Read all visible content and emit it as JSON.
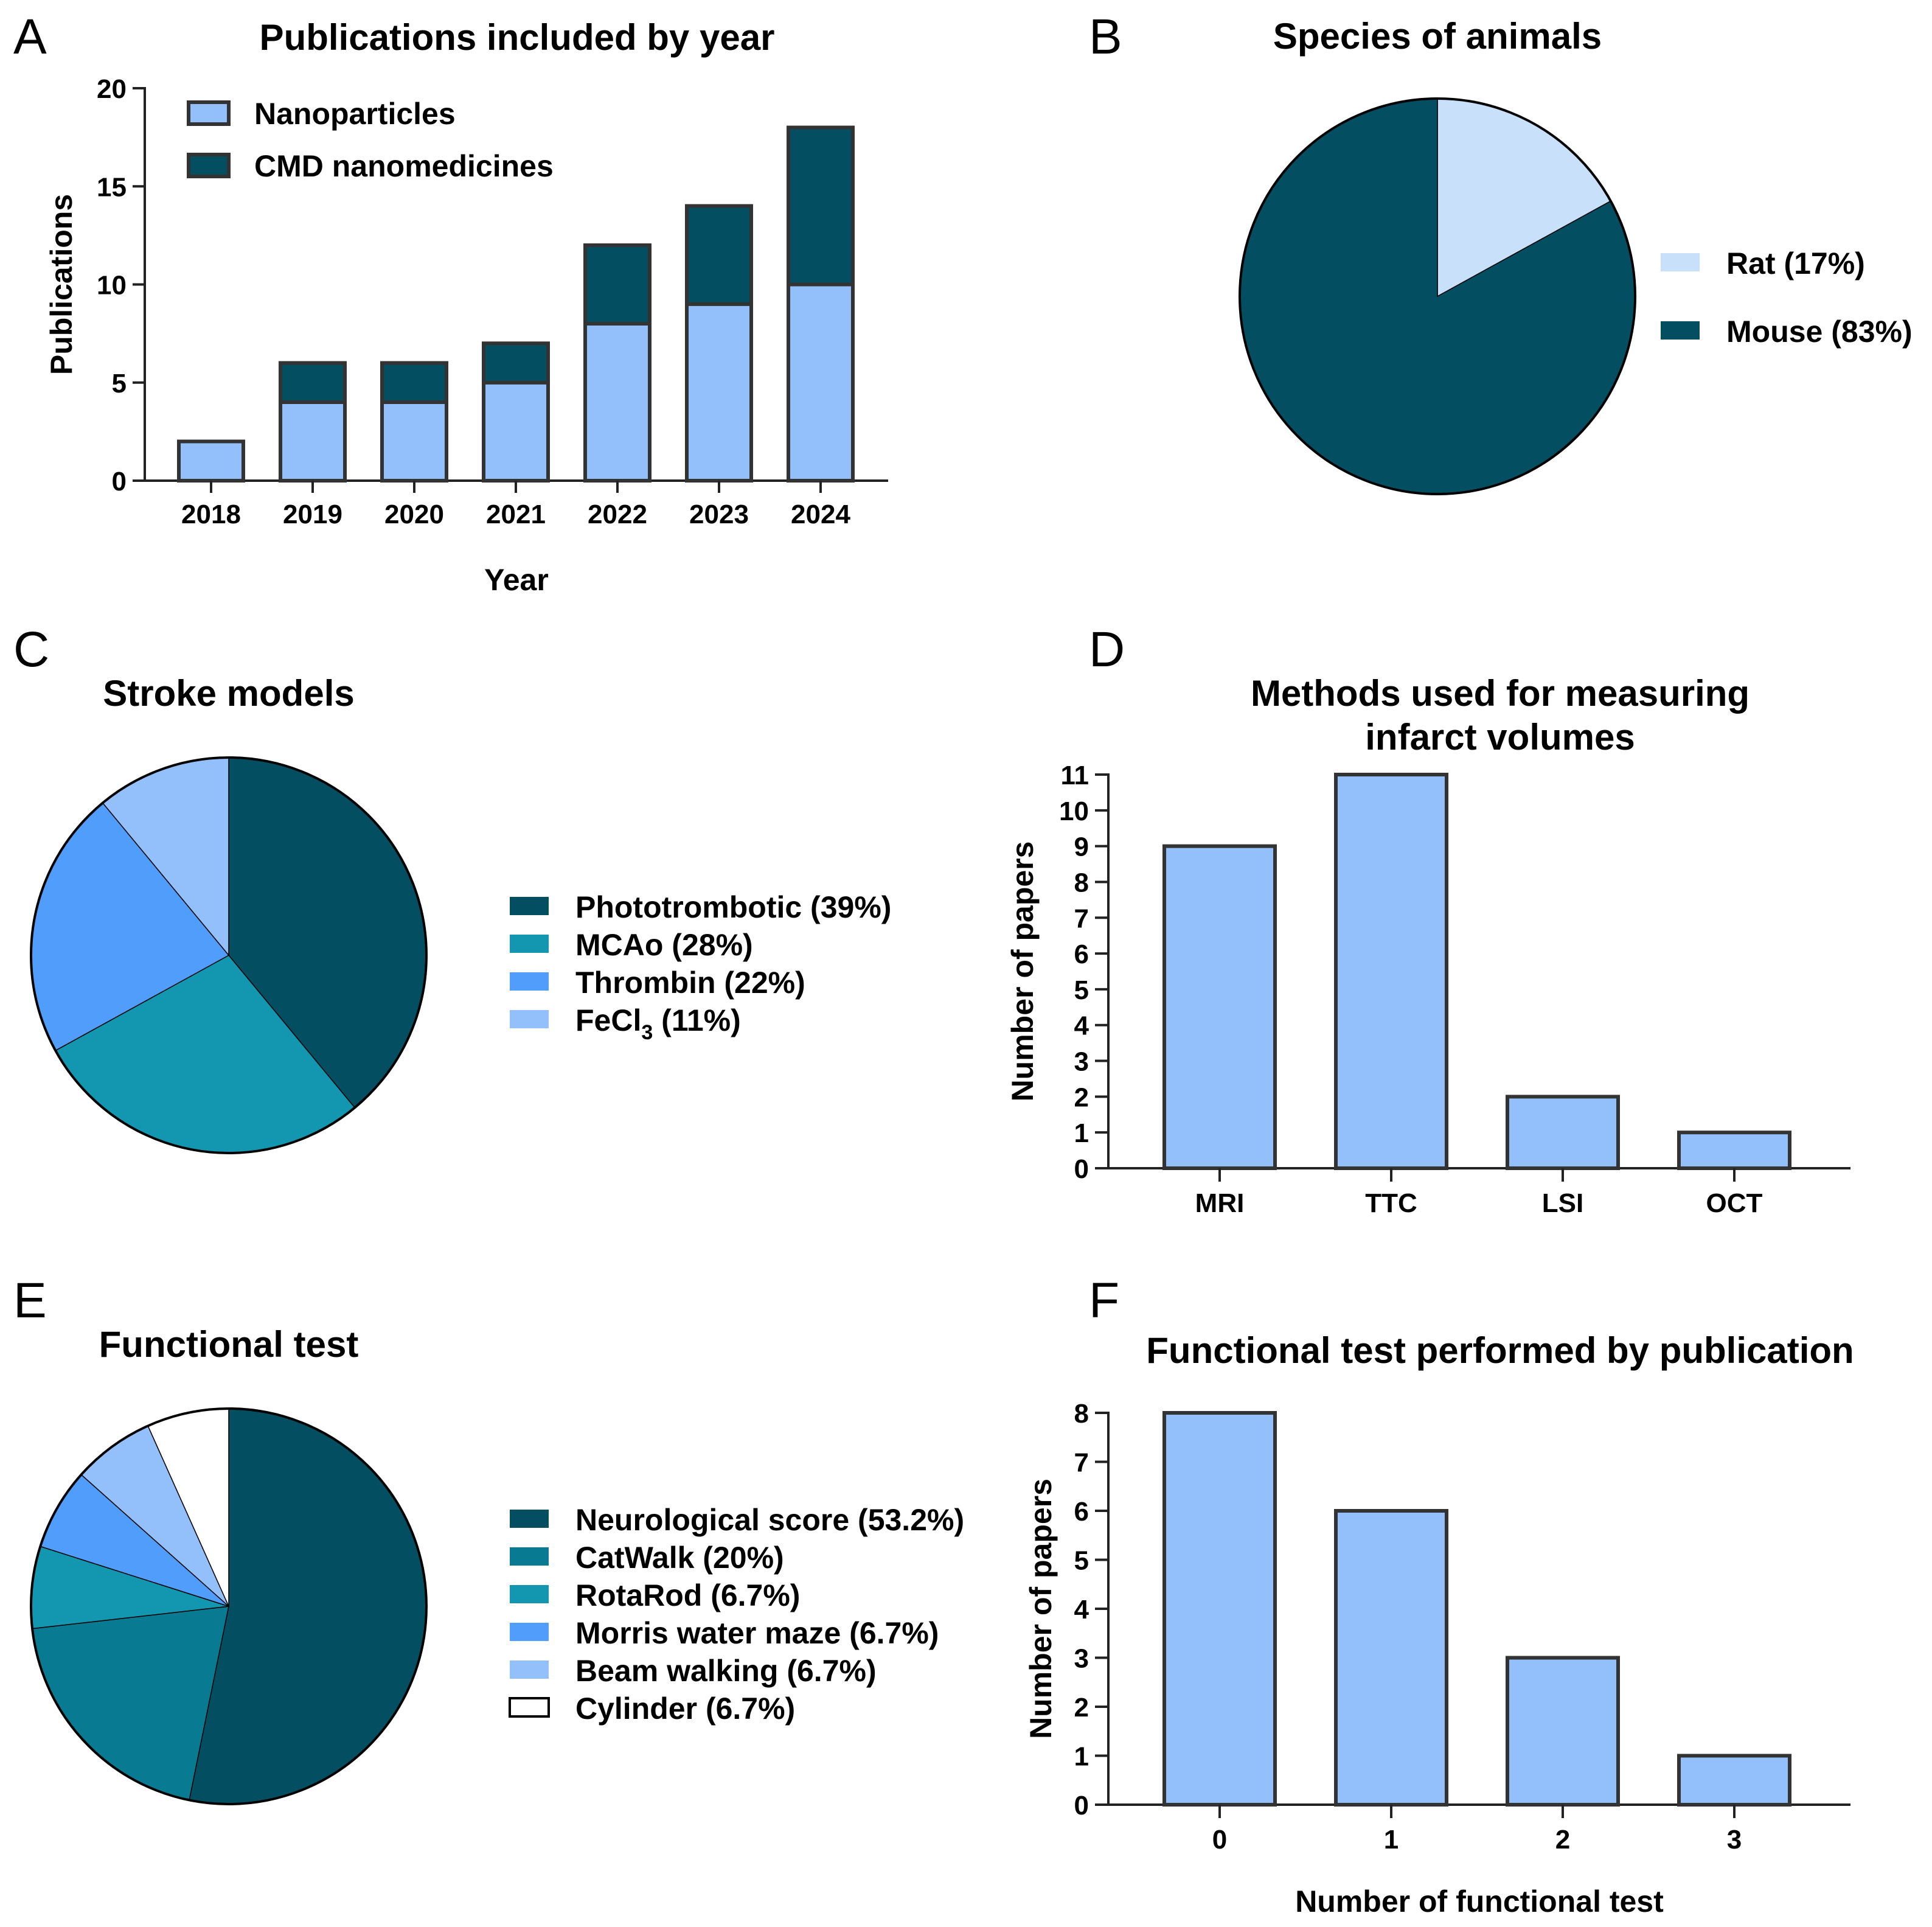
{
  "panel_letters": [
    "A",
    "B",
    "C",
    "D",
    "E",
    "F"
  ],
  "colors": {
    "navy": "#044e62",
    "teal_dark": "#087a92",
    "teal": "#1397b0",
    "blue": "#509dfb",
    "blue_light": "#93c0fb",
    "blue_pale": "#c9e0fb",
    "white": "#ffffff"
  },
  "chart_data": [
    {
      "panel": "A",
      "type": "bar",
      "stacked": true,
      "title": "Publications included by year",
      "xlabel": "Year",
      "ylabel": "Publications",
      "categories": [
        "2018",
        "2019",
        "2020",
        "2021",
        "2022",
        "2023",
        "2024"
      ],
      "series": [
        {
          "name": "Nanoparticles",
          "values": [
            2,
            4,
            4,
            5,
            8,
            9,
            10
          ],
          "color": "#93c0fb"
        },
        {
          "name": "CMD nanomedicines",
          "values": [
            0,
            2,
            2,
            2,
            4,
            5,
            8
          ],
          "color": "#044e62"
        }
      ],
      "ylim": [
        0,
        20
      ],
      "yticks": [
        "0",
        "5",
        "10",
        "15",
        "20"
      ],
      "legend": "top-left"
    },
    {
      "panel": "B",
      "type": "pie",
      "title": "Species of animals",
      "slices": [
        {
          "label": "Rat (17%)",
          "value": 17,
          "color": "#c9e0fb"
        },
        {
          "label": "Mouse (83%)",
          "value": 83,
          "color": "#044e62"
        }
      ],
      "legend": "right"
    },
    {
      "panel": "C",
      "type": "pie",
      "title": "Stroke models",
      "slices": [
        {
          "label": "Phototrombotic (39%)",
          "value": 39,
          "color": "#044e62"
        },
        {
          "label": "MCAo (28%)",
          "value": 28,
          "color": "#1397b0"
        },
        {
          "label": "Thrombin (22%)",
          "value": 22,
          "color": "#509dfb"
        },
        {
          "label": "FeCl",
          "label_sub": "3",
          "label_suffix": " (11%)",
          "value": 11,
          "color": "#93c0fb"
        }
      ],
      "legend": "right"
    },
    {
      "panel": "D",
      "type": "bar",
      "title": "Methods used for measuring",
      "title_line2": "infarct volumes",
      "xlabel": "",
      "ylabel": "Number of papers",
      "categories": [
        "MRI",
        "TTC",
        "LSI",
        "OCT"
      ],
      "values": [
        9,
        11,
        2,
        1
      ],
      "ylim": [
        0,
        11
      ],
      "yticks": [
        "0",
        "1",
        "2",
        "3",
        "4",
        "5",
        "6",
        "7",
        "8",
        "9",
        "10",
        "11"
      ],
      "color": "#93c0fb"
    },
    {
      "panel": "E",
      "type": "pie",
      "title": "Functional test",
      "slices": [
        {
          "label": "Neurological score (53.2%)",
          "value": 53.2,
          "color": "#044e62"
        },
        {
          "label": "CatWalk (20%)",
          "value": 20,
          "color": "#087a92"
        },
        {
          "label": "RotaRod (6.7%)",
          "value": 6.7,
          "color": "#1397b0"
        },
        {
          "label": "Morris water maze (6.7%)",
          "value": 6.7,
          "color": "#509dfb"
        },
        {
          "label": "Beam walking (6.7%)",
          "value": 6.7,
          "color": "#93c0fb"
        },
        {
          "label": "Cylinder (6.7%)",
          "value": 6.7,
          "color": "#ffffff"
        }
      ],
      "legend": "right"
    },
    {
      "panel": "F",
      "type": "bar",
      "title": "Functional test performed by publication",
      "xlabel": "Number of functional test",
      "ylabel": "Number of papers",
      "categories": [
        "0",
        "1",
        "2",
        "3"
      ],
      "values": [
        8,
        6,
        3,
        1
      ],
      "ylim": [
        0,
        8
      ],
      "yticks": [
        "0",
        "1",
        "2",
        "3",
        "4",
        "5",
        "6",
        "7",
        "8"
      ],
      "color": "#93c0fb"
    }
  ]
}
